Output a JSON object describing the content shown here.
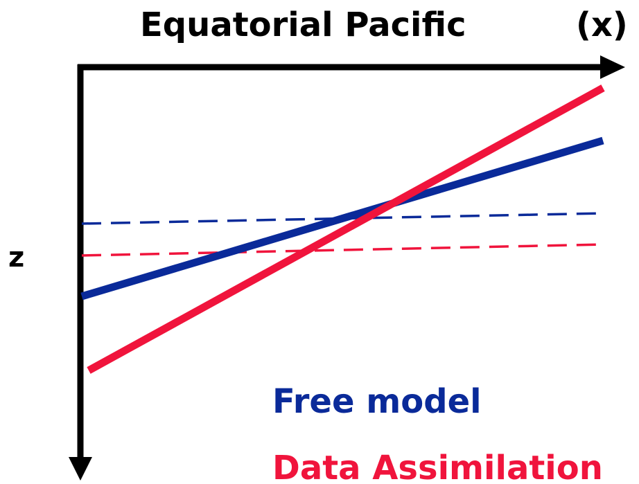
{
  "title": "Equatorial Pacific",
  "x_axis_label": "(x)",
  "z_axis_label": "z",
  "legend": {
    "free_model": "Free model",
    "data_assimilation": "Data Assimilation"
  },
  "colors": {
    "axis": "#000000",
    "free_model": "#0a2a99",
    "data_assimilation": "#f0143c"
  },
  "lines": {
    "free_model_solid": "solid",
    "free_model_dashed": "dashed",
    "data_assimilation_solid": "solid",
    "data_assimilation_dashed": "dashed"
  }
}
